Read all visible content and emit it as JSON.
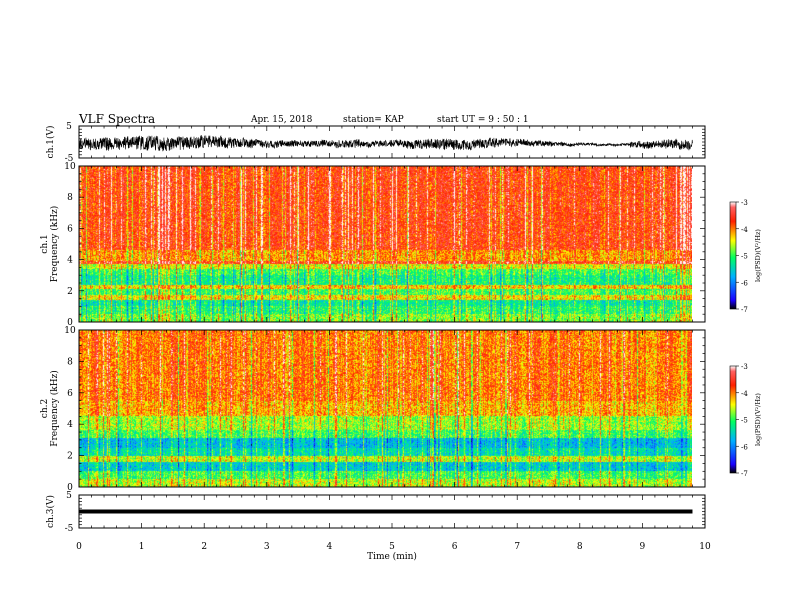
{
  "header": {
    "title": "VLF Spectra",
    "date": "Apr. 15, 2018",
    "station": "station= KAP",
    "start": "start  UT =  9 : 50 : 1"
  },
  "colors": {
    "colormap": [
      "#000000",
      "#1a00ff",
      "#00b0ff",
      "#00ff60",
      "#ffff00",
      "#ff2000",
      "#ffffff"
    ],
    "trace": "#000000",
    "background": "#ffffff"
  },
  "chart_data": [
    {
      "type": "line",
      "panel": "ch1-waveform",
      "ylabel": "ch.1(V)",
      "ylim": [
        -5,
        5
      ],
      "yticks": [
        "5",
        "-5"
      ],
      "xlim": [
        0,
        10
      ],
      "description_values": {
        "x_end": 9.8,
        "center": -0.5,
        "range": [
          -4,
          3
        ]
      }
    },
    {
      "type": "heatmap",
      "panel": "ch1-spectrogram",
      "ylabel": "ch.1\nFrequency (kHz)",
      "ylim": [
        0,
        10
      ],
      "yticks": [
        "0",
        "2",
        "4",
        "6",
        "8",
        "10"
      ],
      "xlim": [
        0,
        10
      ],
      "x_end": 9.8,
      "colorbar": {
        "label": "log(PSD)(V²/Hz)",
        "range": [
          -7,
          -3
        ],
        "ticks": [
          "-3",
          "-4",
          "-5",
          "-6",
          "-7"
        ]
      },
      "bands_khz_logpsd": [
        {
          "f": [
            0,
            0.5
          ],
          "v": -4.8
        },
        {
          "f": [
            0.5,
            1.0
          ],
          "v": -5.1
        },
        {
          "f": [
            1.0,
            1.4
          ],
          "v": -5.3
        },
        {
          "f": [
            1.4,
            1.7
          ],
          "v": -4.4
        },
        {
          "f": [
            1.7,
            2.1
          ],
          "v": -5.0
        },
        {
          "f": [
            2.1,
            2.4
          ],
          "v": -4.3
        },
        {
          "f": [
            2.4,
            3.0
          ],
          "v": -5.2
        },
        {
          "f": [
            3.0,
            3.4
          ],
          "v": -5.0
        },
        {
          "f": [
            3.4,
            3.7
          ],
          "v": -4.5
        },
        {
          "f": [
            3.7,
            3.9
          ],
          "v": -3.6
        },
        {
          "f": [
            3.9,
            4.6
          ],
          "v": -4.1
        },
        {
          "f": [
            4.6,
            10.0
          ],
          "v": -3.7
        }
      ]
    },
    {
      "type": "heatmap",
      "panel": "ch2-spectrogram",
      "ylabel": "ch.2\nFrequency (kHz)",
      "ylim": [
        0,
        10
      ],
      "yticks": [
        "0",
        "2",
        "4",
        "6",
        "8",
        "10"
      ],
      "xlim": [
        0,
        10
      ],
      "x_end": 9.8,
      "colorbar": {
        "label": "log(PSD)(V²/Hz)",
        "range": [
          -7,
          -3
        ],
        "ticks": [
          "-3",
          "-4",
          "-5",
          "-6",
          "-7"
        ]
      },
      "bands_khz_logpsd": [
        {
          "f": [
            0,
            0.5
          ],
          "v": -4.6
        },
        {
          "f": [
            0.5,
            1.0
          ],
          "v": -5.0
        },
        {
          "f": [
            1.0,
            1.6
          ],
          "v": -5.6
        },
        {
          "f": [
            1.6,
            2.0
          ],
          "v": -4.6
        },
        {
          "f": [
            2.0,
            2.5
          ],
          "v": -5.4
        },
        {
          "f": [
            2.5,
            3.1
          ],
          "v": -5.7
        },
        {
          "f": [
            3.1,
            3.6
          ],
          "v": -5.0
        },
        {
          "f": [
            3.6,
            4.5
          ],
          "v": -4.7
        },
        {
          "f": [
            4.5,
            5.5
          ],
          "v": -4.2
        },
        {
          "f": [
            5.5,
            10.0
          ],
          "v": -4.0
        }
      ]
    },
    {
      "type": "line",
      "panel": "ch3-waveform",
      "ylabel": "ch.3(V)",
      "ylim": [
        -5,
        5
      ],
      "yticks": [
        "5",
        "-5"
      ],
      "xlim": [
        0,
        10
      ],
      "x": [
        0,
        9.8
      ],
      "y": [
        0,
        0
      ]
    }
  ],
  "xaxis": {
    "label": "Time (min)",
    "ticks": [
      "0",
      "1",
      "2",
      "3",
      "4",
      "5",
      "6",
      "7",
      "8",
      "9",
      "10"
    ]
  }
}
